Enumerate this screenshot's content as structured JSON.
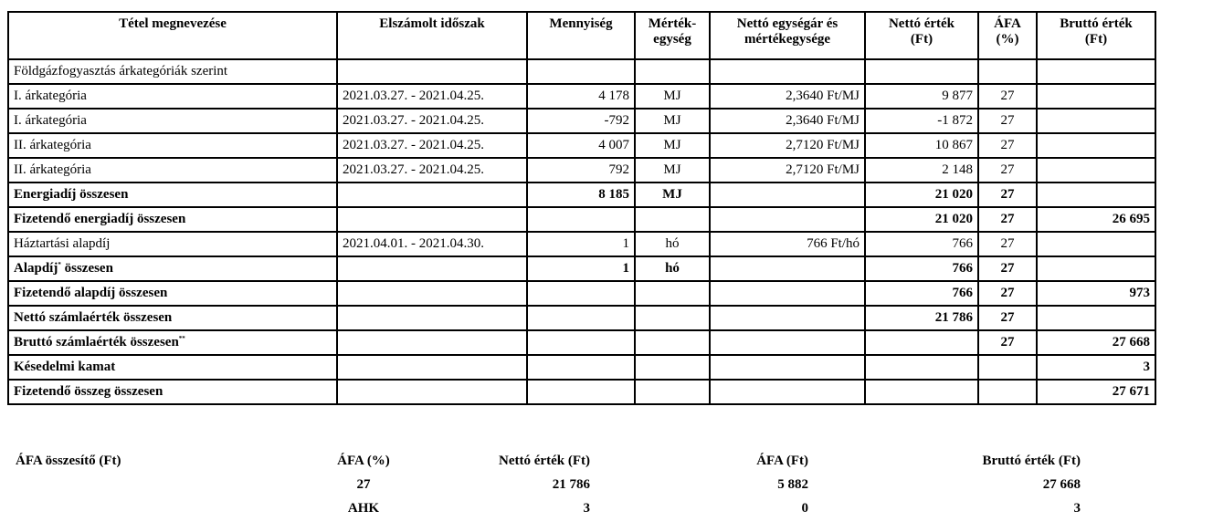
{
  "table": {
    "header": [
      "Tétel megnevezése",
      "Elszámolt időszak",
      "Mennyiség",
      "Mérték-\negység",
      "Nettó egységár és\nmértékegysége",
      "Nettó érték\n(Ft)",
      "ÁFA\n(%)",
      "Bruttó érték\n(Ft)"
    ],
    "align": [
      "left",
      "left",
      "right",
      "center",
      "right",
      "right",
      "center",
      "right"
    ],
    "rows": [
      {
        "bold": false,
        "cells": [
          "Földgázfogyasztás árkategóriák szerint",
          null,
          null,
          null,
          null,
          null,
          null,
          null
        ]
      },
      {
        "bold": false,
        "cells": [
          "I. árkategória",
          "2021.03.27. - 2021.04.25.",
          "4 178",
          "MJ",
          "2,3640 Ft/MJ",
          "9 877",
          "27",
          null
        ]
      },
      {
        "bold": false,
        "cells": [
          "I. árkategória",
          "2021.03.27. - 2021.04.25.",
          "-792",
          "MJ",
          "2,3640 Ft/MJ",
          "-1 872",
          "27",
          null
        ]
      },
      {
        "bold": false,
        "cells": [
          "II. árkategória",
          "2021.03.27. - 2021.04.25.",
          "4 007",
          "MJ",
          "2,7120 Ft/MJ",
          "10 867",
          "27",
          null
        ]
      },
      {
        "bold": false,
        "cells": [
          "II. árkategória",
          "2021.03.27. - 2021.04.25.",
          "792",
          "MJ",
          "2,7120 Ft/MJ",
          "2 148",
          "27",
          null
        ]
      },
      {
        "bold": true,
        "cells": [
          "Energiadíj összesen",
          null,
          "8 185",
          "MJ",
          null,
          "21 020",
          "27",
          null
        ]
      },
      {
        "bold": true,
        "cells": [
          "Fizetendő energiadíj összesen",
          null,
          null,
          null,
          null,
          "21 020",
          "27",
          "26 695"
        ]
      },
      {
        "bold": false,
        "cells": [
          "Háztartási alapdíj",
          "2021.04.01. - 2021.04.30.",
          "1",
          "hó",
          "766 Ft/hó",
          "766",
          "27",
          null
        ]
      },
      {
        "bold": true,
        "cells": [
          [
            "Alapdíj",
            "*",
            " összesen"
          ],
          null,
          "1",
          "hó",
          null,
          "766",
          "27",
          null
        ]
      },
      {
        "bold": true,
        "cells": [
          "Fizetendő alapdíj összesen",
          null,
          null,
          null,
          null,
          "766",
          "27",
          "973"
        ]
      },
      {
        "bold": true,
        "cells": [
          "Nettó számlaérték összesen",
          null,
          null,
          null,
          null,
          "21 786",
          "27",
          null
        ]
      },
      {
        "bold": true,
        "cells": [
          [
            "Bruttó számlaérték összesen",
            "**"
          ],
          null,
          null,
          null,
          null,
          null,
          "27",
          "27 668"
        ]
      },
      {
        "bold": true,
        "cells": [
          "Késedelmi kamat",
          null,
          null,
          null,
          null,
          null,
          null,
          "3"
        ]
      },
      {
        "bold": true,
        "cells": [
          "Fizetendő összeg összesen",
          null,
          null,
          null,
          null,
          null,
          null,
          "27 671"
        ]
      }
    ]
  },
  "summary": {
    "title": "ÁFA összesítő (Ft)",
    "header": [
      "ÁFA (%)",
      "Nettó érték (Ft)",
      "ÁFA (Ft)",
      "Bruttó érték (Ft)"
    ],
    "rows": [
      [
        "27",
        "21 786",
        "5 882",
        "27 668"
      ],
      [
        "AHK",
        "3",
        "0",
        "3"
      ]
    ]
  }
}
